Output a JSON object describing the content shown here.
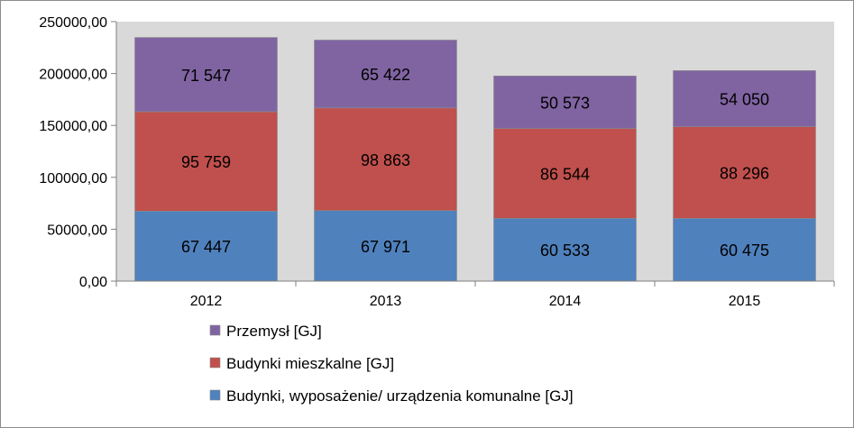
{
  "chart_data": {
    "type": "bar",
    "stacked": true,
    "categories": [
      "2012",
      "2013",
      "2014",
      "2015"
    ],
    "series": [
      {
        "name": "Budynki, wyposażenie/ urządzenia komunalne [GJ]",
        "color": "#4f81bd",
        "values": [
          67447,
          67971,
          60533,
          60475
        ],
        "labels": [
          "67 447",
          "67 971",
          "60 533",
          "60 475"
        ]
      },
      {
        "name": "Budynki mieszkalne [GJ]",
        "color": "#c0504d",
        "values": [
          95759,
          98863,
          86544,
          88296
        ],
        "labels": [
          "95 759",
          "98 863",
          "86 544",
          "88 296"
        ]
      },
      {
        "name": "Przemysł [GJ]",
        "color": "#8064a2",
        "values": [
          71547,
          65422,
          50573,
          54050
        ],
        "labels": [
          "71 547",
          "65 422",
          "50 573",
          "54 050"
        ]
      }
    ],
    "legend_order": [
      2,
      1,
      0
    ],
    "ylim": [
      0,
      250000
    ],
    "yticks": [
      0,
      50000,
      100000,
      150000,
      200000,
      250000
    ],
    "ytick_labels": [
      "0,00",
      "50000,00",
      "100000,00",
      "150000,00",
      "200000,00",
      "250000,00"
    ],
    "grid": false,
    "plot_background": "#d9d9d9",
    "legend_position": "bottom",
    "title": "",
    "xlabel": "",
    "ylabel": ""
  }
}
